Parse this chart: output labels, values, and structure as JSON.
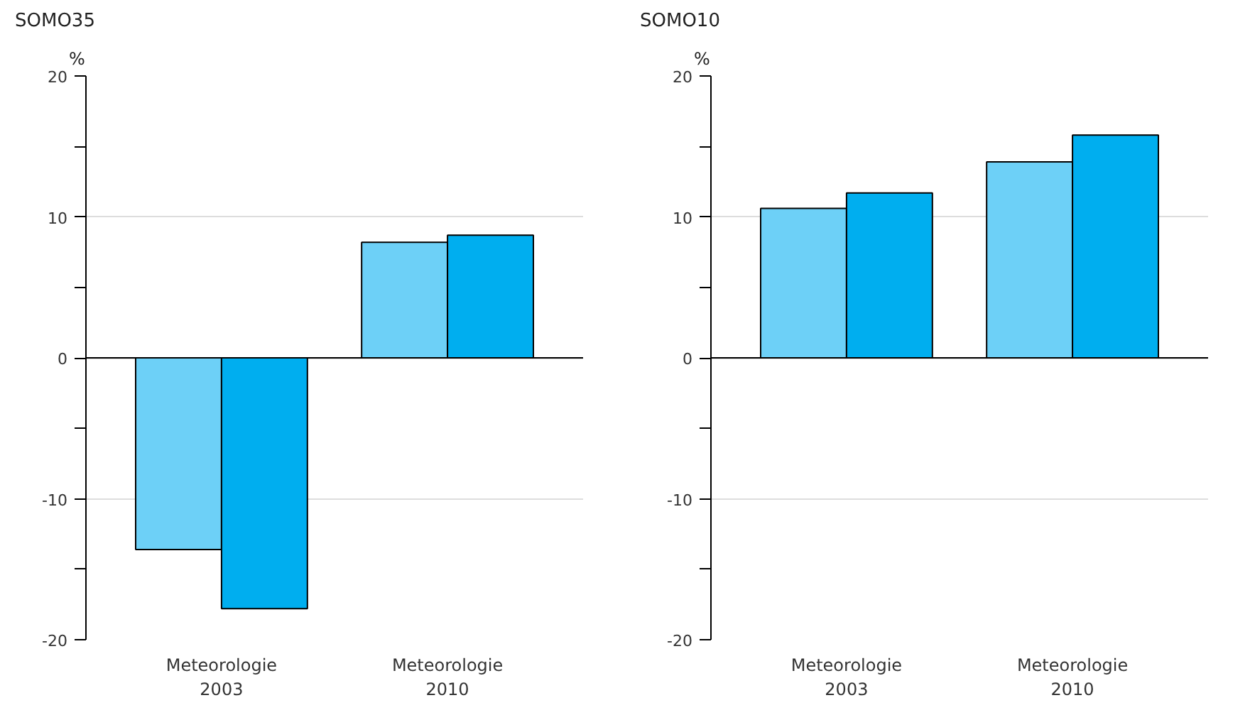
{
  "chart_data": [
    {
      "type": "bar",
      "title": "SOMO35",
      "ylabel": "%",
      "categories": [
        "Meteorologie\n2003",
        "Meteorologie\n2010"
      ],
      "series": [
        {
          "color": "#6dd0f7",
          "values": [
            -13.6,
            8.2
          ]
        },
        {
          "color": "#00aeef",
          "values": [
            -17.8,
            8.7
          ]
        }
      ],
      "ylim": [
        -20,
        20
      ],
      "yticks": [
        -20,
        {
          "value": -15,
          "label": null
        },
        -10,
        {
          "value": -5,
          "label": null
        },
        0,
        {
          "value": 5,
          "label": null
        },
        10,
        {
          "value": 15,
          "label": null
        },
        20
      ],
      "grid": "y",
      "ref_lines": [
        {
          "axis": "y",
          "value": 0,
          "color": "#000000"
        }
      ]
    },
    {
      "type": "bar",
      "title": "SOMO10",
      "ylabel": "%",
      "categories": [
        "Meteorologie\n2003",
        "Meteorologie\n2010"
      ],
      "series": [
        {
          "color": "#6dd0f7",
          "values": [
            10.6,
            13.9
          ]
        },
        {
          "color": "#00aeef",
          "values": [
            11.7,
            15.8
          ]
        }
      ],
      "ylim": [
        -20,
        20
      ],
      "yticks": [
        -20,
        {
          "value": -15,
          "label": null
        },
        -10,
        {
          "value": -5,
          "label": null
        },
        0,
        {
          "value": 5,
          "label": null
        },
        10,
        {
          "value": 15,
          "label": null
        },
        20
      ],
      "grid": "y",
      "ref_lines": [
        {
          "axis": "y",
          "value": 0,
          "color": "#000000"
        }
      ]
    }
  ]
}
